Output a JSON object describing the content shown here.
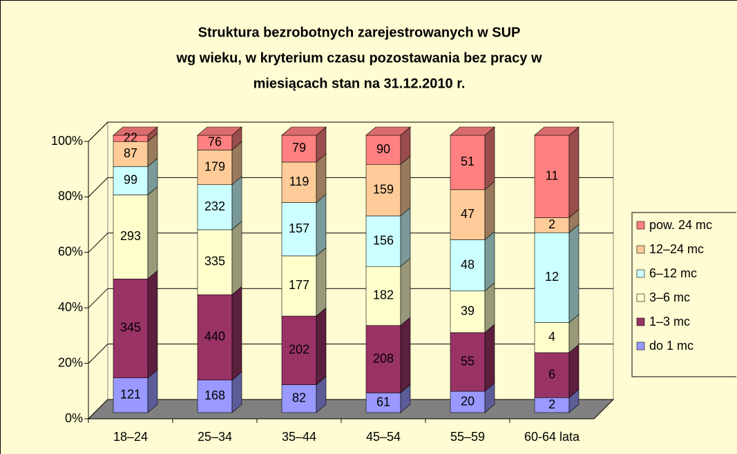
{
  "chart_data": {
    "type": "bar3d_stacked100",
    "title": [
      "Struktura bezrobotnych zarejestrowanych w SUP",
      "wg wieku, w kryterium czasu pozostawania bez pracy w",
      "miesiącach stan na 31.12.2010 r."
    ],
    "categories": [
      "18–24",
      "25–34",
      "35–44",
      "45–54",
      "55–59",
      "60-64 lata"
    ],
    "series": [
      {
        "name": "do 1 mc",
        "color": "#9999ff",
        "values": [
          121,
          168,
          82,
          61,
          20,
          2
        ]
      },
      {
        "name": "1–3 mc",
        "color": "#993366",
        "values": [
          345,
          440,
          202,
          208,
          55,
          6
        ]
      },
      {
        "name": "3–6 mc",
        "color": "#ffffcc",
        "values": [
          293,
          335,
          177,
          182,
          39,
          4
        ]
      },
      {
        "name": "6–12 mc",
        "color": "#ccffff",
        "values": [
          99,
          232,
          157,
          156,
          48,
          12
        ]
      },
      {
        "name": "12–24 mc",
        "color": "#ffcc99",
        "values": [
          87,
          179,
          119,
          159,
          47,
          2
        ]
      },
      {
        "name": "pow. 24 mc",
        "color": "#ff8080",
        "values": [
          22,
          76,
          79,
          90,
          51,
          11
        ]
      }
    ],
    "ylim": [
      0,
      100
    ],
    "yticks": [
      {
        "value": 0,
        "label": "0%"
      },
      {
        "value": 20,
        "label": "20%"
      },
      {
        "value": 40,
        "label": "40%"
      },
      {
        "value": 60,
        "label": "60%"
      },
      {
        "value": 80,
        "label": "80%"
      },
      {
        "value": 100,
        "label": "100%"
      }
    ],
    "grid": true,
    "legend": "right"
  }
}
